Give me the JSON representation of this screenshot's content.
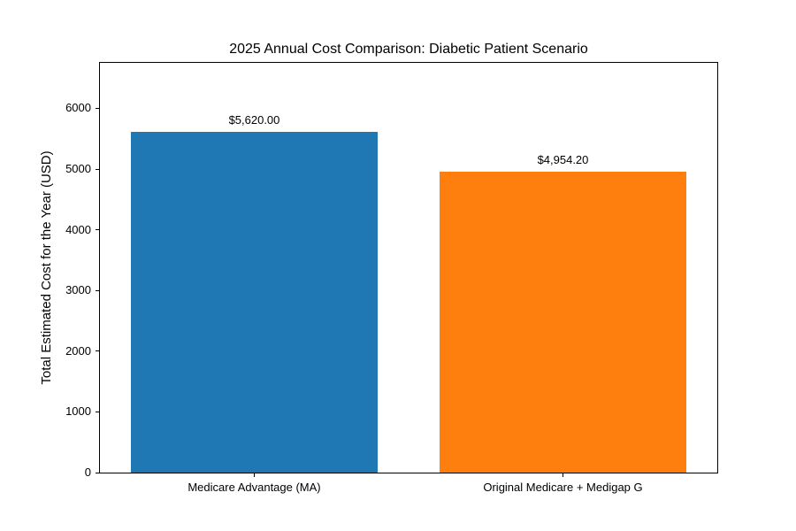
{
  "chart_data": {
    "type": "bar",
    "title": "2025 Annual Cost Comparison: Diabetic Patient Scenario",
    "categories": [
      "Medicare Advantage (MA)",
      "Original Medicare + Medigap G"
    ],
    "values": [
      5620.0,
      4954.2
    ],
    "bar_labels": [
      "$5,620.00",
      "$4,954.20"
    ],
    "bar_colors": [
      "#1f77b4",
      "#ff7f0e"
    ],
    "xlabel": "",
    "ylabel": "Total Estimated Cost for the Year (USD)",
    "ylim": [
      0,
      6750
    ],
    "yticks": [
      0,
      1000,
      2000,
      3000,
      4000,
      5000,
      6000
    ],
    "bar_width_fraction": 0.8,
    "grid": false,
    "legend": false,
    "colors": {
      "background": "#ffffff",
      "spine": "#000000",
      "text": "#000000"
    }
  }
}
